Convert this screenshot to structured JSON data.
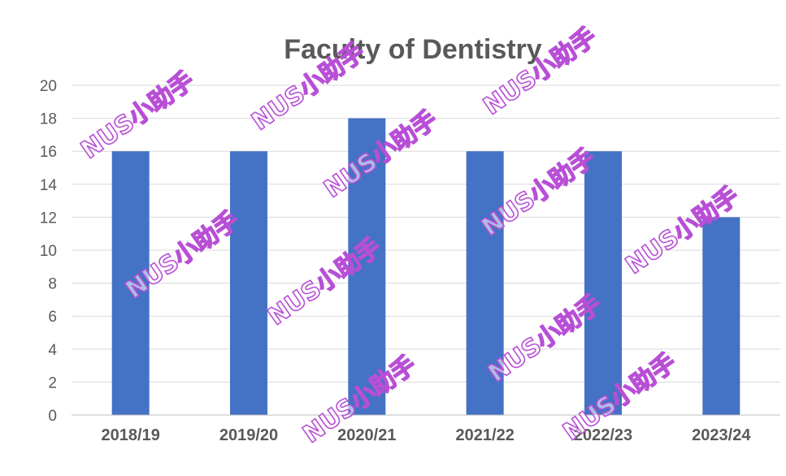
{
  "chart_data": {
    "type": "bar",
    "title": "Faculty of Dentistry",
    "categories": [
      "2018/19",
      "2019/20",
      "2020/21",
      "2021/22",
      "2022/23",
      "2023/24"
    ],
    "series": [
      {
        "values": [
          16,
          16,
          18,
          16,
          16,
          12
        ],
        "color": "#4472c4"
      }
    ],
    "xlabel": "",
    "ylabel": "",
    "ylim": [
      0,
      20
    ],
    "yticks": [
      "0",
      "2",
      "4",
      "6",
      "8",
      "10",
      "12",
      "14",
      "16",
      "18",
      "20"
    ],
    "grid": true,
    "legend": "none"
  },
  "watermark": {
    "text": "NUS小助手",
    "color": "#b84fd6"
  }
}
